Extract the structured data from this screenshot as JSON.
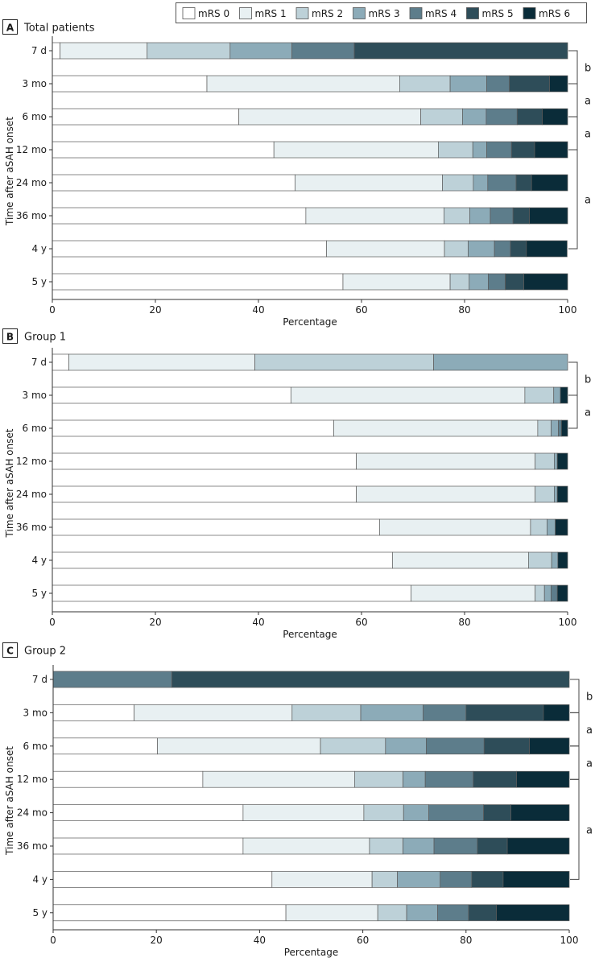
{
  "legend": {
    "items": [
      "mRS 0",
      "mRS 1",
      "mRS 2",
      "mRS 3",
      "mRS 4",
      "mRS 5",
      "mRS 6"
    ],
    "colors": [
      "#ffffff",
      "#e8f0f2",
      "#bdd1d8",
      "#8cabb8",
      "#5d7d8b",
      "#2e4d59",
      "#0a2c39"
    ]
  },
  "chart_data": [
    {
      "type": "bar",
      "stacked": true,
      "orientation": "horizontal",
      "panel_letter": "A",
      "title": "Total patients",
      "xlabel": "Percentage",
      "ylabel": "Time after aSAH onset",
      "xlim": [
        0,
        100
      ],
      "xticks": [
        "0",
        "20",
        "40",
        "60",
        "80",
        "100"
      ],
      "categories": [
        "7 d",
        "3 mo",
        "6 mo",
        "12 mo",
        "24 mo",
        "36 mo",
        "4 y",
        "5 y"
      ],
      "series": [
        {
          "name": "mRS 0",
          "values": [
            1.5,
            30,
            36.2,
            43,
            47.1,
            49.2,
            53.2,
            56.4
          ]
        },
        {
          "name": "mRS 1",
          "values": [
            16.9,
            37.4,
            35.3,
            31.9,
            28.6,
            26.8,
            22.9,
            20.8
          ]
        },
        {
          "name": "mRS 2",
          "values": [
            16.1,
            9.8,
            8.1,
            6.7,
            6.0,
            5.0,
            4.6,
            3.7
          ]
        },
        {
          "name": "mRS 3",
          "values": [
            12.0,
            7.1,
            4.6,
            2.7,
            2.8,
            4.0,
            5.1,
            3.7
          ]
        },
        {
          "name": "mRS 4",
          "values": [
            12.1,
            4.4,
            6.0,
            4.8,
            5.5,
            4.4,
            3.1,
            3.3
          ]
        },
        {
          "name": "mRS 5",
          "values": [
            41.4,
            7.8,
            4.9,
            4.5,
            3.0,
            3.2,
            3.1,
            3.6
          ]
        },
        {
          "name": "mRS 6",
          "values": [
            0,
            3.5,
            4.9,
            6.4,
            7.0,
            7.4,
            7.9,
            8.5
          ]
        }
      ],
      "brackets": [
        {
          "from": 0,
          "to": 1,
          "label": "b"
        },
        {
          "from": 1,
          "to": 2,
          "label": "a"
        },
        {
          "from": 2,
          "to": 3,
          "label": "a"
        },
        {
          "from": 3,
          "to": 6,
          "label": "a"
        }
      ]
    },
    {
      "type": "bar",
      "stacked": true,
      "orientation": "horizontal",
      "panel_letter": "B",
      "title": "Group 1",
      "xlabel": "Percentage",
      "ylabel": "Time after aSAH onset",
      "xlim": [
        0,
        100
      ],
      "xticks": [
        "0",
        "20",
        "40",
        "60",
        "80",
        "100"
      ],
      "categories": [
        "7 d",
        "3 mo",
        "6 mo",
        "12 mo",
        "24 mo",
        "36 mo",
        "4 y",
        "5 y"
      ],
      "series": [
        {
          "name": "mRS 0",
          "values": [
            3.2,
            46.3,
            54.6,
            59.0,
            59.0,
            63.5,
            66.0,
            69.6
          ]
        },
        {
          "name": "mRS 1",
          "values": [
            36.1,
            45.4,
            39.6,
            34.7,
            34.7,
            29.3,
            26.4,
            24.1
          ]
        },
        {
          "name": "mRS 2",
          "values": [
            34.7,
            5.6,
            2.6,
            3.7,
            3.7,
            3.2,
            4.5,
            1.8
          ]
        },
        {
          "name": "mRS 3",
          "values": [
            26.0,
            1.3,
            1.4,
            0.6,
            0.6,
            1.6,
            1.2,
            1.3
          ]
        },
        {
          "name": "mRS 4",
          "values": [
            0,
            0,
            0.6,
            0,
            0,
            0,
            0,
            1.2
          ]
        },
        {
          "name": "mRS 5",
          "values": [
            0,
            0,
            0,
            0,
            0,
            0,
            0,
            0
          ]
        },
        {
          "name": "mRS 6",
          "values": [
            0,
            1.4,
            1.2,
            2.0,
            2.0,
            2.4,
            1.9,
            2.0
          ]
        }
      ],
      "brackets": [
        {
          "from": 0,
          "to": 1,
          "label": "b"
        },
        {
          "from": 1,
          "to": 2,
          "label": "a"
        }
      ]
    },
    {
      "type": "bar",
      "stacked": true,
      "orientation": "horizontal",
      "panel_letter": "C",
      "title": "Group 2",
      "xlabel": "Percentage",
      "ylabel": "Time after aSAH onset",
      "xlim": [
        0,
        100
      ],
      "xticks": [
        "0",
        "20",
        "40",
        "60",
        "80",
        "100"
      ],
      "categories": [
        "7 d",
        "3 mo",
        "6 mo",
        "12 mo",
        "24 mo",
        "36 mo",
        "4 y",
        "5 y"
      ],
      "series": [
        {
          "name": "mRS 0",
          "values": [
            0,
            15.7,
            20.2,
            29.0,
            36.8,
            36.8,
            42.4,
            45.1
          ]
        },
        {
          "name": "mRS 1",
          "values": [
            0,
            30.6,
            31.6,
            29.4,
            23.4,
            24.5,
            19.4,
            17.8
          ]
        },
        {
          "name": "mRS 2",
          "values": [
            0,
            13.3,
            12.6,
            9.4,
            7.7,
            6.5,
            4.9,
            5.6
          ]
        },
        {
          "name": "mRS 3",
          "values": [
            0,
            12.1,
            7.9,
            4.3,
            4.9,
            6.0,
            8.3,
            6.0
          ]
        },
        {
          "name": "mRS 4",
          "values": [
            23.0,
            8.3,
            11.2,
            9.3,
            10.6,
            8.4,
            6.1,
            6.0
          ]
        },
        {
          "name": "mRS 5",
          "values": [
            77.0,
            15.0,
            8.8,
            8.4,
            5.3,
            5.8,
            6.1,
            5.4
          ]
        },
        {
          "name": "mRS 6",
          "values": [
            0,
            5.0,
            7.7,
            10.2,
            11.3,
            12.0,
            12.8,
            14.1
          ]
        }
      ],
      "brackets": [
        {
          "from": 0,
          "to": 1,
          "label": "b"
        },
        {
          "from": 1,
          "to": 2,
          "label": "a"
        },
        {
          "from": 2,
          "to": 3,
          "label": "a"
        },
        {
          "from": 3,
          "to": 6,
          "label": "a"
        }
      ]
    }
  ]
}
